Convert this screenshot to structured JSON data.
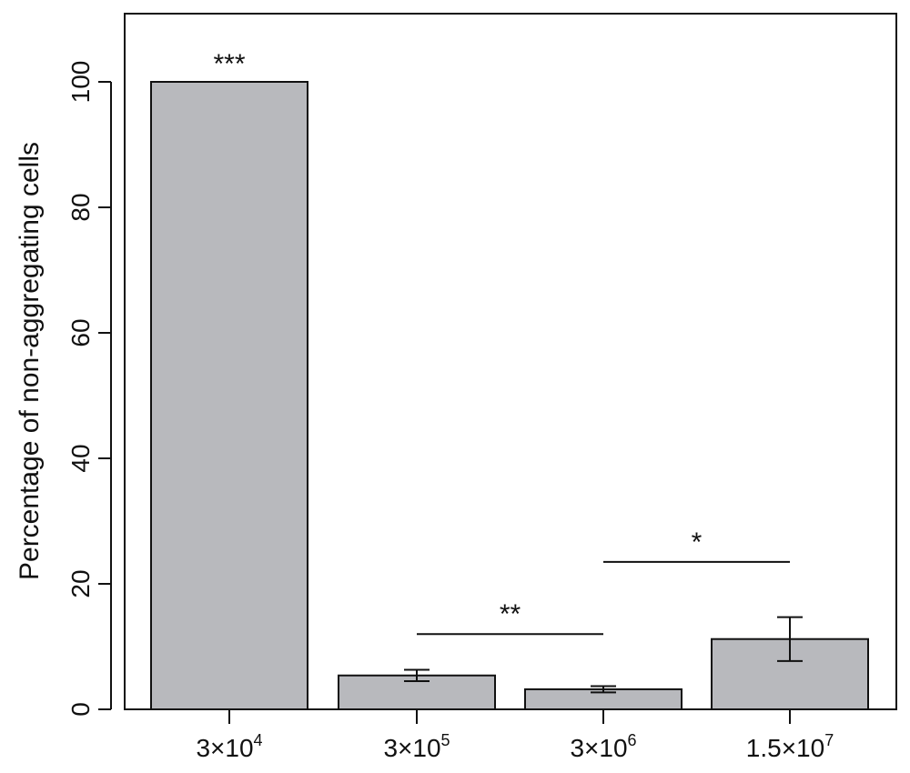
{
  "chart_data": {
    "type": "bar",
    "ylabel": "Percentage of non-aggregating cells",
    "xlabel": "",
    "ylim": [
      0,
      110
    ],
    "yticks": [
      0,
      20,
      40,
      60,
      80,
      100
    ],
    "grid": false,
    "categories": [
      {
        "label": "3×10",
        "exponent": "4"
      },
      {
        "label": "3×10",
        "exponent": "5"
      },
      {
        "label": "3×10",
        "exponent": "6"
      },
      {
        "label": "1.5×10",
        "exponent": "7"
      }
    ],
    "values": [
      100,
      5.4,
      3.2,
      11.2
    ],
    "error": [
      0,
      0.9,
      0.5,
      3.5
    ],
    "bar_color": "#b8b9bd",
    "annotations": [
      {
        "text": "***",
        "bar": 0
      },
      {
        "text": "**",
        "from": 1,
        "to": 2,
        "y": 12
      },
      {
        "text": "*",
        "from": 2,
        "to": 3,
        "y": 23.5
      }
    ]
  }
}
